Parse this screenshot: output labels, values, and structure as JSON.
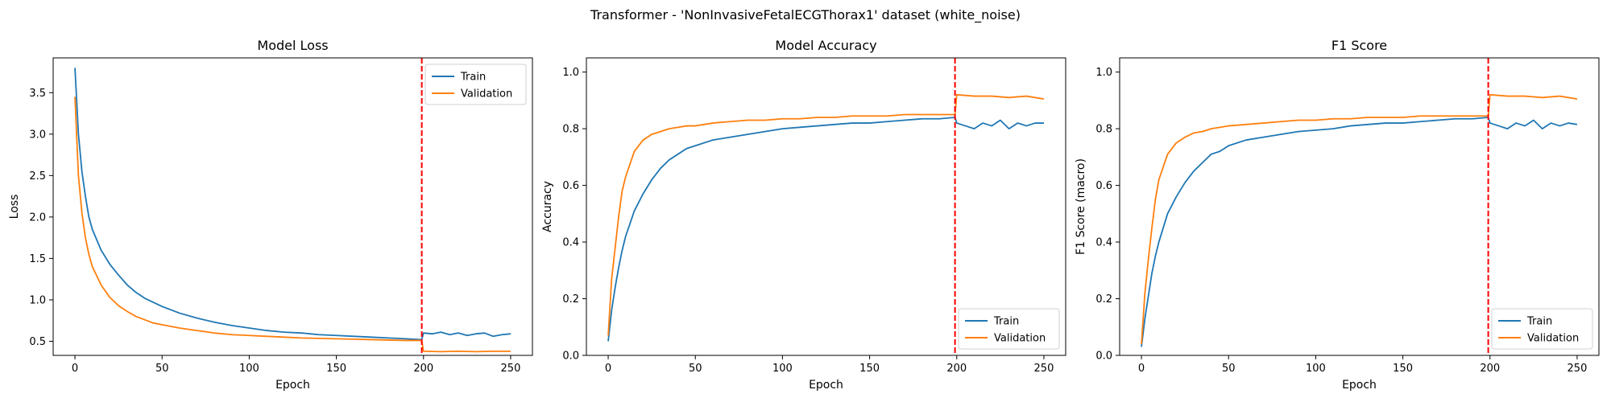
{
  "figure": {
    "suptitle": "Transformer - 'NonInvasiveFetalECGThorax1' dataset (white_noise)"
  },
  "colors": {
    "train": "#1f77b4",
    "validation": "#ff7f0e",
    "marker": "#ff0000"
  },
  "chart_data": [
    {
      "type": "line",
      "title": "Model Loss",
      "xlabel": "Epoch",
      "ylabel": "Loss",
      "xlim": [
        -12.5,
        262.5
      ],
      "ylim": [
        0.33,
        3.92
      ],
      "xticks": [
        0,
        50,
        100,
        150,
        200,
        250
      ],
      "yticks": [
        0.5,
        1.0,
        1.5,
        2.0,
        2.5,
        3.0,
        3.5
      ],
      "ytick_labels": [
        "0.5",
        "1.0",
        "1.5",
        "2.0",
        "2.5",
        "3.0",
        "3.5"
      ],
      "vline_x": 199,
      "legend": {
        "loc": "upper right",
        "entries": [
          "Train",
          "Validation"
        ]
      },
      "series": [
        {
          "name": "Train",
          "x": [
            0,
            2,
            4,
            6,
            8,
            10,
            15,
            20,
            25,
            30,
            35,
            40,
            45,
            50,
            60,
            70,
            80,
            90,
            100,
            110,
            120,
            130,
            140,
            150,
            160,
            170,
            180,
            190,
            199,
            200,
            205,
            210,
            215,
            220,
            225,
            230,
            235,
            240,
            245,
            250
          ],
          "y": [
            3.8,
            3.0,
            2.55,
            2.25,
            2.0,
            1.85,
            1.6,
            1.43,
            1.3,
            1.18,
            1.09,
            1.02,
            0.97,
            0.92,
            0.84,
            0.78,
            0.73,
            0.69,
            0.66,
            0.63,
            0.61,
            0.6,
            0.58,
            0.57,
            0.56,
            0.55,
            0.54,
            0.53,
            0.52,
            0.6,
            0.59,
            0.61,
            0.58,
            0.6,
            0.57,
            0.59,
            0.6,
            0.56,
            0.58,
            0.59
          ]
        },
        {
          "name": "Validation",
          "x": [
            0,
            2,
            4,
            6,
            8,
            10,
            15,
            20,
            25,
            30,
            35,
            40,
            45,
            50,
            60,
            70,
            80,
            90,
            100,
            110,
            120,
            130,
            140,
            150,
            160,
            170,
            180,
            190,
            199,
            200,
            210,
            220,
            230,
            240,
            250
          ],
          "y": [
            3.45,
            2.5,
            2.05,
            1.75,
            1.55,
            1.4,
            1.18,
            1.03,
            0.93,
            0.86,
            0.8,
            0.76,
            0.72,
            0.7,
            0.66,
            0.63,
            0.6,
            0.58,
            0.57,
            0.56,
            0.55,
            0.54,
            0.535,
            0.53,
            0.525,
            0.52,
            0.515,
            0.51,
            0.51,
            0.38,
            0.375,
            0.38,
            0.375,
            0.38,
            0.38
          ]
        }
      ]
    },
    {
      "type": "line",
      "title": "Model Accuracy",
      "xlabel": "Epoch",
      "ylabel": "Accuracy",
      "xlim": [
        -12.5,
        262.5
      ],
      "ylim": [
        0.0,
        1.05
      ],
      "xticks": [
        0,
        50,
        100,
        150,
        200,
        250
      ],
      "yticks": [
        0.0,
        0.2,
        0.4,
        0.6,
        0.8,
        1.0
      ],
      "ytick_labels": [
        "0.0",
        "0.2",
        "0.4",
        "0.6",
        "0.8",
        "1.0"
      ],
      "vline_x": 199,
      "legend": {
        "loc": "lower right",
        "entries": [
          "Train",
          "Validation"
        ]
      },
      "series": [
        {
          "name": "Train",
          "x": [
            0,
            2,
            4,
            6,
            8,
            10,
            15,
            20,
            25,
            30,
            35,
            40,
            45,
            50,
            60,
            70,
            80,
            90,
            100,
            110,
            120,
            130,
            140,
            150,
            160,
            170,
            180,
            190,
            199,
            200,
            205,
            210,
            215,
            220,
            225,
            230,
            235,
            240,
            245,
            250
          ],
          "y": [
            0.05,
            0.16,
            0.24,
            0.31,
            0.37,
            0.42,
            0.51,
            0.57,
            0.62,
            0.66,
            0.69,
            0.71,
            0.73,
            0.74,
            0.76,
            0.77,
            0.78,
            0.79,
            0.8,
            0.805,
            0.81,
            0.815,
            0.82,
            0.82,
            0.825,
            0.83,
            0.835,
            0.835,
            0.84,
            0.82,
            0.81,
            0.8,
            0.82,
            0.81,
            0.83,
            0.8,
            0.82,
            0.81,
            0.82,
            0.82
          ]
        },
        {
          "name": "Validation",
          "x": [
            0,
            2,
            4,
            6,
            8,
            10,
            15,
            20,
            25,
            30,
            35,
            40,
            45,
            50,
            60,
            70,
            80,
            90,
            100,
            110,
            120,
            130,
            140,
            150,
            160,
            170,
            180,
            190,
            199,
            200,
            210,
            220,
            230,
            240,
            250
          ],
          "y": [
            0.07,
            0.27,
            0.38,
            0.49,
            0.58,
            0.63,
            0.72,
            0.76,
            0.78,
            0.79,
            0.8,
            0.805,
            0.81,
            0.81,
            0.82,
            0.825,
            0.83,
            0.83,
            0.835,
            0.835,
            0.84,
            0.84,
            0.845,
            0.845,
            0.845,
            0.85,
            0.85,
            0.85,
            0.85,
            0.92,
            0.915,
            0.915,
            0.91,
            0.915,
            0.905
          ]
        }
      ]
    },
    {
      "type": "line",
      "title": "F1 Score",
      "xlabel": "Epoch",
      "ylabel": "F1 Score (macro)",
      "xlim": [
        -12.5,
        262.5
      ],
      "ylim": [
        0.0,
        1.05
      ],
      "xticks": [
        0,
        50,
        100,
        150,
        200,
        250
      ],
      "yticks": [
        0.0,
        0.2,
        0.4,
        0.6,
        0.8,
        1.0
      ],
      "ytick_labels": [
        "0.0",
        "0.2",
        "0.4",
        "0.6",
        "0.8",
        "1.0"
      ],
      "vline_x": 199,
      "legend": {
        "loc": "lower right",
        "entries": [
          "Train",
          "Validation"
        ]
      },
      "series": [
        {
          "name": "Train",
          "x": [
            0,
            2,
            4,
            6,
            8,
            10,
            15,
            20,
            25,
            30,
            35,
            40,
            45,
            50,
            60,
            70,
            80,
            90,
            100,
            110,
            120,
            130,
            140,
            150,
            160,
            170,
            180,
            190,
            199,
            200,
            205,
            210,
            215,
            220,
            225,
            230,
            235,
            240,
            245,
            250
          ],
          "y": [
            0.03,
            0.13,
            0.21,
            0.29,
            0.35,
            0.4,
            0.5,
            0.56,
            0.61,
            0.65,
            0.68,
            0.71,
            0.72,
            0.74,
            0.76,
            0.77,
            0.78,
            0.79,
            0.795,
            0.8,
            0.81,
            0.815,
            0.82,
            0.82,
            0.825,
            0.83,
            0.835,
            0.835,
            0.84,
            0.82,
            0.81,
            0.8,
            0.82,
            0.81,
            0.83,
            0.8,
            0.82,
            0.81,
            0.82,
            0.815
          ]
        },
        {
          "name": "Validation",
          "x": [
            0,
            2,
            4,
            6,
            8,
            10,
            15,
            20,
            25,
            30,
            35,
            40,
            45,
            50,
            60,
            70,
            80,
            90,
            100,
            110,
            120,
            130,
            140,
            150,
            160,
            170,
            180,
            190,
            199,
            200,
            210,
            220,
            230,
            240,
            250
          ],
          "y": [
            0.04,
            0.22,
            0.34,
            0.45,
            0.55,
            0.62,
            0.71,
            0.75,
            0.77,
            0.785,
            0.79,
            0.8,
            0.805,
            0.81,
            0.815,
            0.82,
            0.825,
            0.83,
            0.83,
            0.835,
            0.835,
            0.84,
            0.84,
            0.84,
            0.845,
            0.845,
            0.845,
            0.845,
            0.845,
            0.92,
            0.915,
            0.915,
            0.91,
            0.915,
            0.905
          ]
        }
      ]
    }
  ]
}
